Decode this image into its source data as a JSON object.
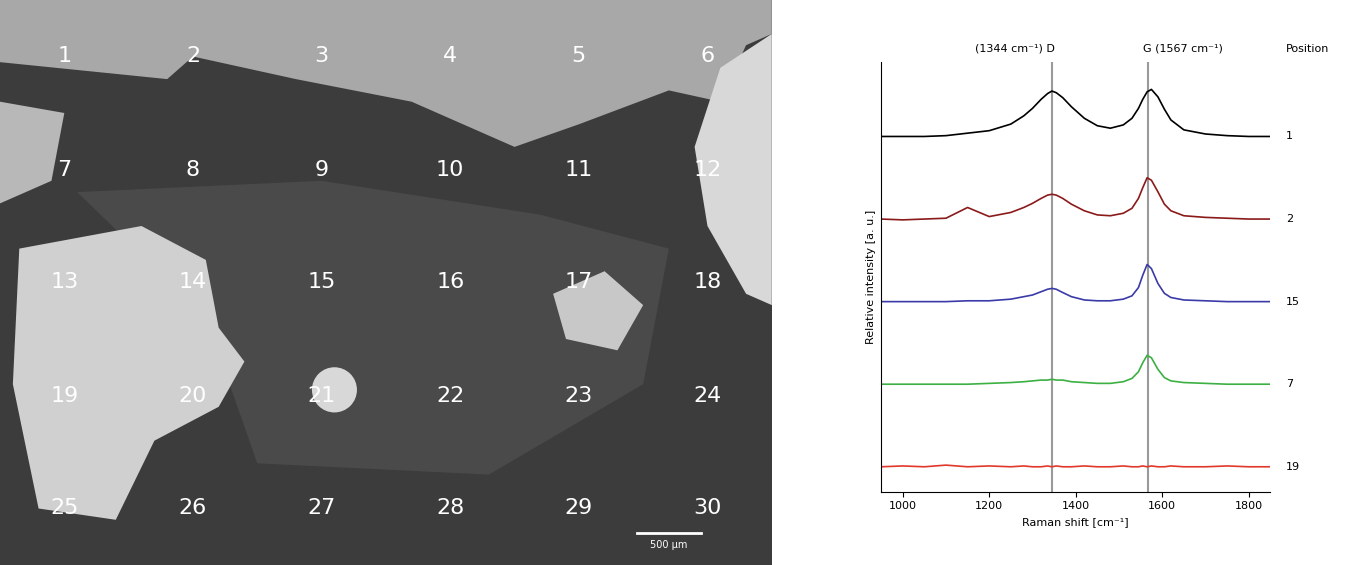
{
  "micrograph": {
    "type": "image",
    "position_labels": [
      "1",
      "2",
      "3",
      "4",
      "5",
      "6",
      "7",
      "8",
      "9",
      "10",
      "11",
      "12",
      "13",
      "14",
      "15",
      "16",
      "17",
      "18",
      "19",
      "20",
      "21",
      "22",
      "23",
      "24",
      "25",
      "26",
      "27",
      "28",
      "29",
      "30"
    ],
    "columns": 6,
    "scale_bar": "500 µm"
  },
  "chart_data": {
    "type": "line",
    "x_label": "Raman shift [cm⁻¹]",
    "y_label": "Relative intensity [a. u.]",
    "label_header": "Position",
    "annotations": [
      {
        "x": 1344,
        "text": "(1344 cm⁻¹) D"
      },
      {
        "x": 1567,
        "text": "G (1567 cm⁻¹)"
      }
    ],
    "x": [
      950,
      1000,
      1050,
      1100,
      1150,
      1200,
      1250,
      1280,
      1300,
      1320,
      1335,
      1345,
      1355,
      1370,
      1390,
      1420,
      1450,
      1480,
      1510,
      1530,
      1545,
      1555,
      1565,
      1575,
      1590,
      1605,
      1620,
      1650,
      1700,
      1750,
      1800,
      1850
    ],
    "series": [
      {
        "name": "1",
        "color": "#000000",
        "values": [
          4.0,
          4.0,
          4.0,
          4.01,
          4.04,
          4.07,
          4.15,
          4.25,
          4.34,
          4.45,
          4.52,
          4.55,
          4.53,
          4.47,
          4.36,
          4.22,
          4.13,
          4.1,
          4.14,
          4.22,
          4.34,
          4.45,
          4.54,
          4.57,
          4.48,
          4.33,
          4.2,
          4.08,
          4.03,
          4.01,
          4.0,
          4.0
        ]
      },
      {
        "name": "2",
        "color": "#8b1a1a",
        "values": [
          3.0,
          2.99,
          3.0,
          3.01,
          3.14,
          3.03,
          3.08,
          3.14,
          3.19,
          3.25,
          3.29,
          3.3,
          3.29,
          3.25,
          3.18,
          3.1,
          3.05,
          3.04,
          3.07,
          3.13,
          3.25,
          3.38,
          3.5,
          3.47,
          3.33,
          3.18,
          3.1,
          3.04,
          3.02,
          3.01,
          3.0,
          3.0
        ]
      },
      {
        "name": "15",
        "color": "#3a3aa8",
        "values": [
          2.0,
          2.0,
          2.0,
          2.0,
          2.01,
          2.01,
          2.03,
          2.06,
          2.08,
          2.12,
          2.15,
          2.16,
          2.15,
          2.11,
          2.06,
          2.02,
          2.01,
          2.01,
          2.03,
          2.07,
          2.17,
          2.32,
          2.45,
          2.4,
          2.22,
          2.1,
          2.05,
          2.02,
          2.01,
          2.0,
          2.0,
          2.0
        ]
      },
      {
        "name": "7",
        "color": "#3cb043",
        "values": [
          1.0,
          1.0,
          1.0,
          1.0,
          1.0,
          1.01,
          1.02,
          1.03,
          1.04,
          1.05,
          1.05,
          1.06,
          1.05,
          1.05,
          1.03,
          1.02,
          1.01,
          1.01,
          1.03,
          1.07,
          1.15,
          1.26,
          1.35,
          1.32,
          1.18,
          1.08,
          1.04,
          1.02,
          1.01,
          1.0,
          1.0,
          1.0
        ]
      },
      {
        "name": "19",
        "color": "#e0392b",
        "values": [
          0.0,
          0.01,
          0.0,
          0.02,
          0.0,
          0.01,
          0.0,
          0.01,
          0.0,
          0.0,
          0.01,
          0.0,
          0.01,
          0.0,
          0.0,
          0.01,
          0.0,
          0.0,
          0.01,
          0.0,
          0.0,
          0.01,
          0.0,
          0.01,
          0.0,
          0.0,
          0.01,
          0.0,
          0.0,
          0.01,
          0.0,
          0.0
        ]
      }
    ],
    "xlim": [
      950,
      1850
    ],
    "xticks": [
      1000,
      1200,
      1400,
      1600,
      1800
    ],
    "ylim": [
      -0.3,
      4.9
    ],
    "yticks": [],
    "tick_labels": "x"
  }
}
